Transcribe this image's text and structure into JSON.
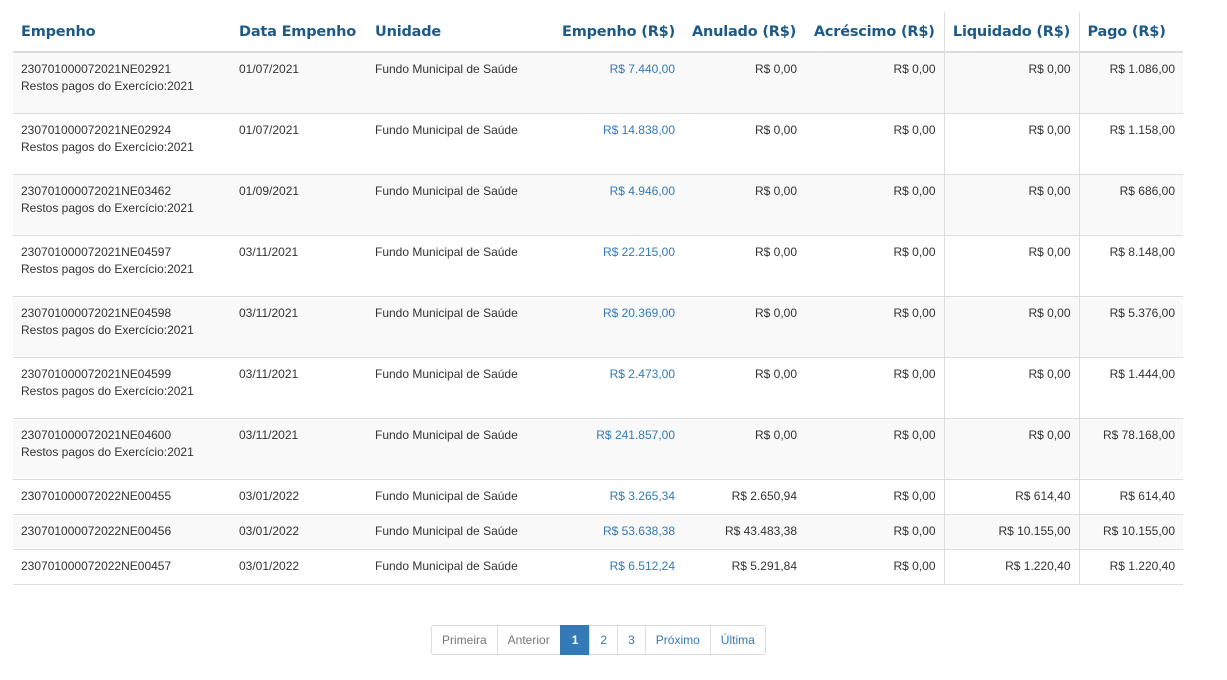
{
  "table": {
    "headers": [
      "Empenho",
      "Data Empenho",
      "Unidade",
      "Empenho (R$)",
      "Anulado (R$)",
      "Acréscimo (R$)",
      "Liquidado (R$)",
      "Pago (R$)"
    ],
    "rows": [
      {
        "empenho": "230701000072021NE02921",
        "subtitle": "Restos pagos do Exercício:2021",
        "data": "01/07/2021",
        "unidade": "Fundo Municipal de Saúde",
        "valor": "R$ 7.440,00",
        "anulado": "R$ 0,00",
        "acrescimo": "R$ 0,00",
        "liquidado": "R$ 0,00",
        "pago": "R$ 1.086,00"
      },
      {
        "empenho": "230701000072021NE02924",
        "subtitle": "Restos pagos do Exercício:2021",
        "data": "01/07/2021",
        "unidade": "Fundo Municipal de Saúde",
        "valor": "R$ 14.838,00",
        "anulado": "R$ 0,00",
        "acrescimo": "R$ 0,00",
        "liquidado": "R$ 0,00",
        "pago": "R$ 1.158,00"
      },
      {
        "empenho": "230701000072021NE03462",
        "subtitle": "Restos pagos do Exercício:2021",
        "data": "01/09/2021",
        "unidade": "Fundo Municipal de Saúde",
        "valor": "R$ 4.946,00",
        "anulado": "R$ 0,00",
        "acrescimo": "R$ 0,00",
        "liquidado": "R$ 0,00",
        "pago": "R$ 686,00"
      },
      {
        "empenho": "230701000072021NE04597",
        "subtitle": "Restos pagos do Exercício:2021",
        "data": "03/11/2021",
        "unidade": "Fundo Municipal de Saúde",
        "valor": "R$ 22.215,00",
        "anulado": "R$ 0,00",
        "acrescimo": "R$ 0,00",
        "liquidado": "R$ 0,00",
        "pago": "R$ 8.148,00"
      },
      {
        "empenho": "230701000072021NE04598",
        "subtitle": "Restos pagos do Exercício:2021",
        "data": "03/11/2021",
        "unidade": "Fundo Municipal de Saúde",
        "valor": "R$ 20.369,00",
        "anulado": "R$ 0,00",
        "acrescimo": "R$ 0,00",
        "liquidado": "R$ 0,00",
        "pago": "R$ 5.376,00"
      },
      {
        "empenho": "230701000072021NE04599",
        "subtitle": "Restos pagos do Exercício:2021",
        "data": "03/11/2021",
        "unidade": "Fundo Municipal de Saúde",
        "valor": "R$ 2.473,00",
        "anulado": "R$ 0,00",
        "acrescimo": "R$ 0,00",
        "liquidado": "R$ 0,00",
        "pago": "R$ 1.444,00"
      },
      {
        "empenho": "230701000072021NE04600",
        "subtitle": "Restos pagos do Exercício:2021",
        "data": "03/11/2021",
        "unidade": "Fundo Municipal de Saúde",
        "valor": "R$ 241.857,00",
        "anulado": "R$ 0,00",
        "acrescimo": "R$ 0,00",
        "liquidado": "R$ 0,00",
        "pago": "R$ 78.168,00"
      },
      {
        "empenho": "230701000072022NE00455",
        "subtitle": "",
        "data": "03/01/2022",
        "unidade": "Fundo Municipal de Saúde",
        "valor": "R$ 3.265,34",
        "anulado": "R$ 2.650,94",
        "acrescimo": "R$ 0,00",
        "liquidado": "R$ 614,40",
        "pago": "R$ 614,40"
      },
      {
        "empenho": "230701000072022NE00456",
        "subtitle": "",
        "data": "03/01/2022",
        "unidade": "Fundo Municipal de Saúde",
        "valor": "R$ 53.638,38",
        "anulado": "R$ 43.483,38",
        "acrescimo": "R$ 0,00",
        "liquidado": "R$ 10.155,00",
        "pago": "R$ 10.155,00"
      },
      {
        "empenho": "230701000072022NE00457",
        "subtitle": "",
        "data": "03/01/2022",
        "unidade": "Fundo Municipal de Saúde",
        "valor": "R$ 6.512,24",
        "anulado": "R$ 5.291,84",
        "acrescimo": "R$ 0,00",
        "liquidado": "R$ 1.220,40",
        "pago": "R$ 1.220,40"
      }
    ]
  },
  "pagination": {
    "items": [
      {
        "label": "Primeira",
        "state": "disabled"
      },
      {
        "label": "Anterior",
        "state": "disabled"
      },
      {
        "label": "1",
        "state": "active"
      },
      {
        "label": "2",
        "state": "normal"
      },
      {
        "label": "3",
        "state": "normal"
      },
      {
        "label": "Próximo",
        "state": "normal"
      },
      {
        "label": "Última",
        "state": "normal"
      }
    ]
  },
  "colors": {
    "header_text": "#1d5a87",
    "link": "#337ab7",
    "active_page_bg": "#337ab7",
    "row_stripe": "#f9f9f9",
    "border": "#dddddd"
  }
}
